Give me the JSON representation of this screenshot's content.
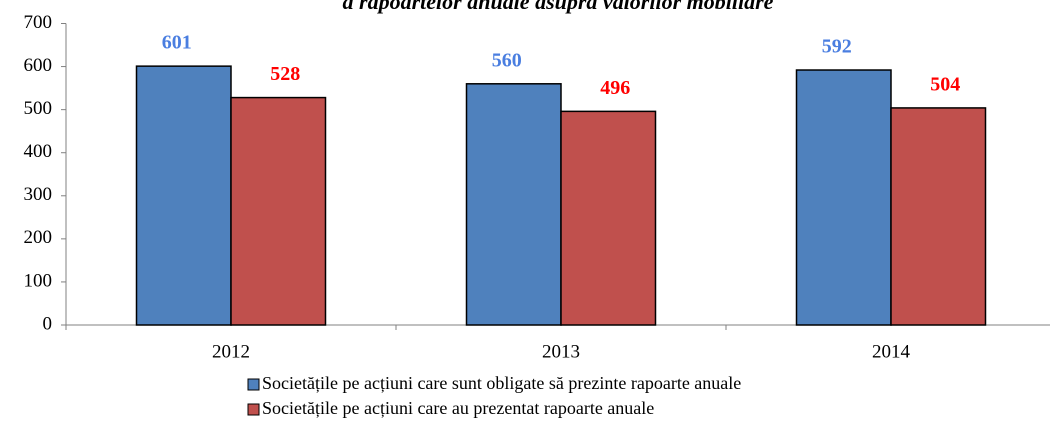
{
  "chart_data": {
    "type": "bar",
    "title": "a rapoartelor anuale asupra valorilor mobiliare",
    "categories": [
      "2012",
      "2013",
      "2014"
    ],
    "series": [
      {
        "name": "Societățile pe acțiuni care sunt obligate să prezinte rapoarte anuale",
        "color": "#4f81bd",
        "label_color": "#4a7ee0",
        "values": [
          601,
          560,
          592
        ]
      },
      {
        "name": "Societățile pe acțiuni care au prezentat rapoarte anuale",
        "color": "#c0504d",
        "label_color": "#ff0000",
        "values": [
          528,
          496,
          504
        ]
      }
    ],
    "ylim": [
      0,
      700
    ],
    "yticks": [
      0,
      100,
      200,
      300,
      400,
      500,
      600,
      700
    ],
    "grid": false,
    "legend": "bottom"
  }
}
